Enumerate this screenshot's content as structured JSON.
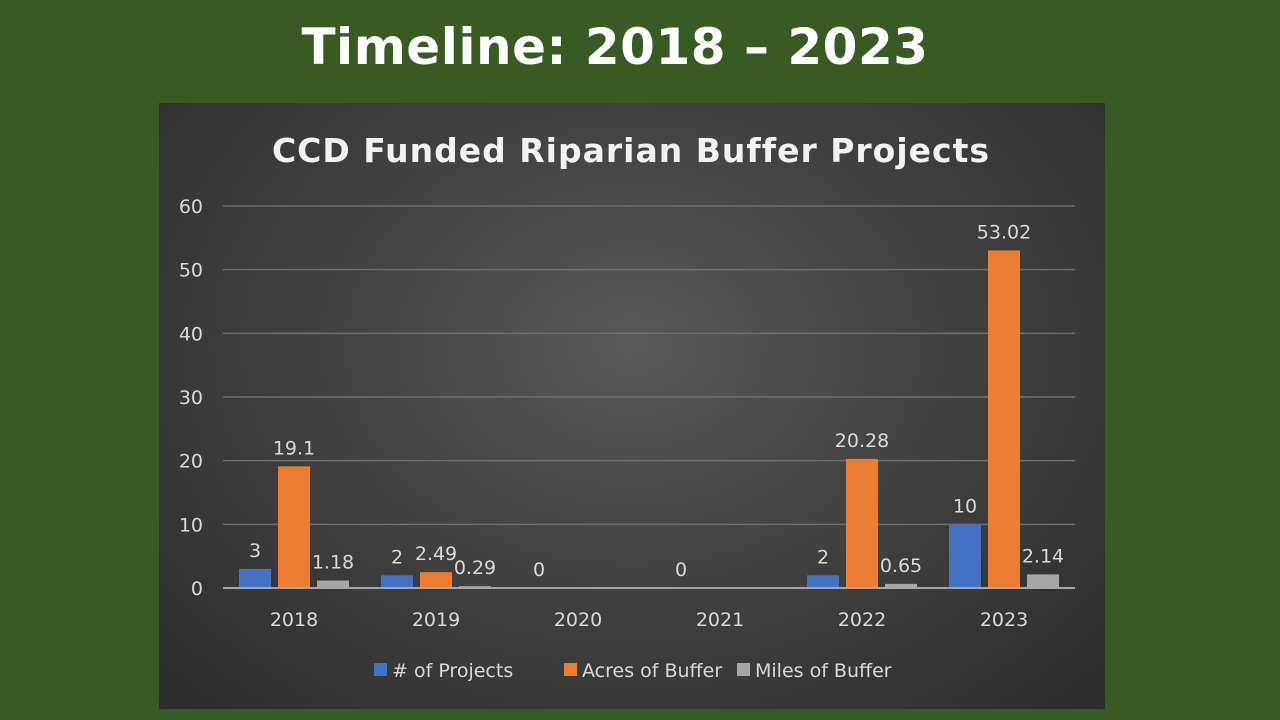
{
  "slide": {
    "title": "Timeline: 2018 – 2023"
  },
  "chart_data": {
    "type": "bar",
    "title": "CCD Funded Riparian Buffer Projects",
    "categories": [
      "2018",
      "2019",
      "2020",
      "2021",
      "2022",
      "2023"
    ],
    "series": [
      {
        "name": "# of Projects",
        "color": "#4472c4",
        "values": [
          3,
          2,
          0,
          0,
          2,
          10
        ],
        "labels": [
          "3",
          "2",
          "0",
          "0",
          "2",
          "10"
        ]
      },
      {
        "name": "Acres of Buffer",
        "color": "#ed7d31",
        "values": [
          19.1,
          2.49,
          null,
          null,
          20.28,
          53.02
        ],
        "labels": [
          "19.1",
          "2.49",
          "",
          "",
          "20.28",
          "53.02"
        ]
      },
      {
        "name": "Miles of Buffer",
        "color": "#a5a5a5",
        "values": [
          1.18,
          0.29,
          null,
          null,
          0.65,
          2.14
        ],
        "labels": [
          "1.18",
          "0.29",
          "",
          "",
          "0.65",
          "2.14"
        ]
      }
    ],
    "ylim": [
      0,
      60
    ],
    "yticks": [
      "0",
      "10",
      "20",
      "30",
      "40",
      "50",
      "60"
    ],
    "grid": true,
    "legend": "bottom"
  }
}
